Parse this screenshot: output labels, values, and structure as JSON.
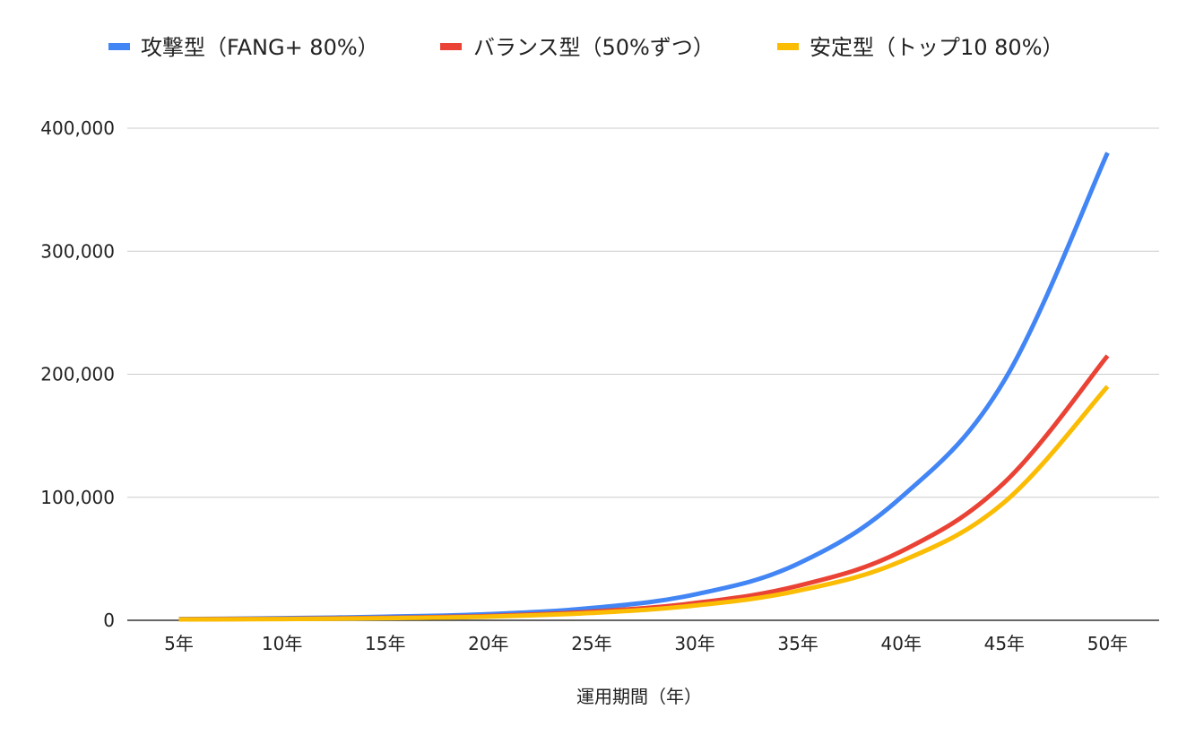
{
  "chart_data": {
    "type": "line",
    "title": "",
    "xlabel": "運用期間（年）",
    "ylabel": "",
    "categories": [
      "5年",
      "10年",
      "15年",
      "20年",
      "25年",
      "30年",
      "35年",
      "40年",
      "45年",
      "50年"
    ],
    "x": [
      5,
      10,
      15,
      20,
      25,
      30,
      35,
      40,
      45,
      50
    ],
    "ylim": [
      0,
      400000
    ],
    "yticks": [
      "0",
      "100,000",
      "200,000",
      "300,000",
      "400,000"
    ],
    "ytick_values": [
      0,
      100000,
      200000,
      300000,
      400000
    ],
    "grid": true,
    "legend_position": "top",
    "series": [
      {
        "name": "攻撃型（FANG+ 80%）",
        "color": "#4285F4",
        "values": [
          1000,
          1700,
          2900,
          5000,
          10000,
          21000,
          46000,
          100000,
          195000,
          380000
        ]
      },
      {
        "name": "バランス型（50%ずつ）",
        "color": "#EA4335",
        "values": [
          800,
          1200,
          2000,
          3500,
          7000,
          14000,
          28000,
          56000,
          112000,
          215000
        ]
      },
      {
        "name": "安定型（トップ10 80%）",
        "color": "#FBBC04",
        "values": [
          700,
          1000,
          1700,
          3000,
          6000,
          12000,
          24000,
          48000,
          96000,
          190000
        ]
      }
    ]
  }
}
